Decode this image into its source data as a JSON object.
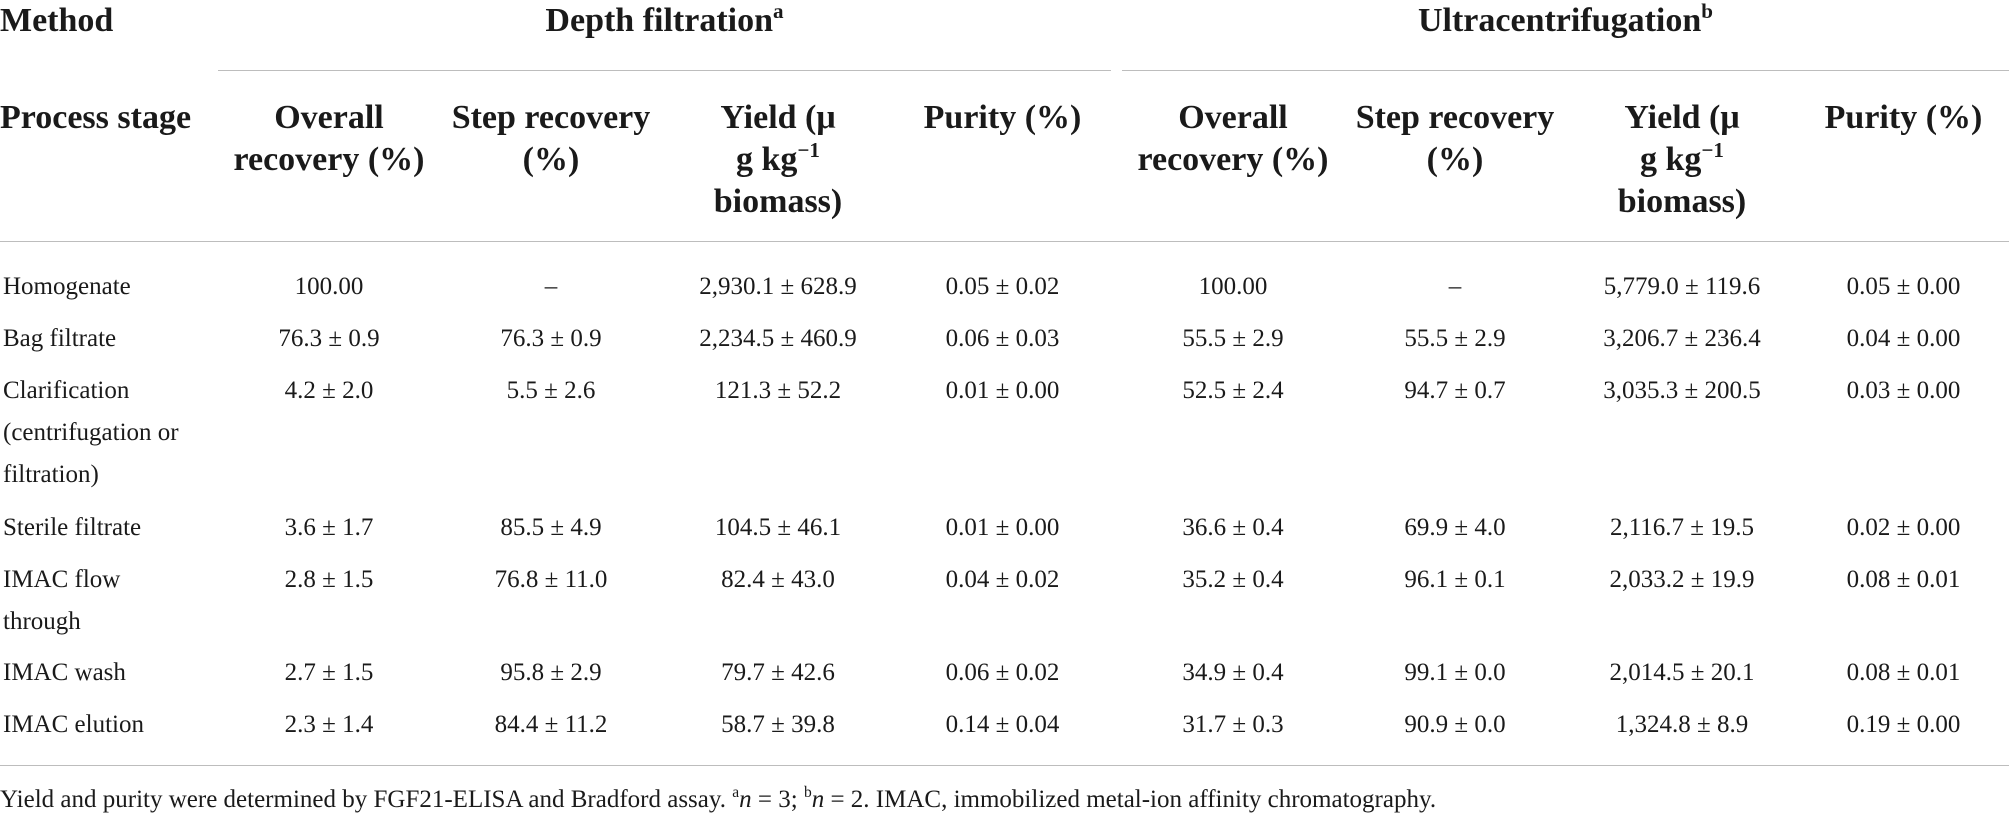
{
  "header": {
    "method_label": "Method",
    "process_stage_label": "Process stage",
    "group1": {
      "title": "Depth filtration",
      "note": "a"
    },
    "group2": {
      "title": "Ultracentrifugation",
      "note": "b"
    },
    "columns": {
      "overall_recovery": "Overall recovery (%)",
      "step_recovery": "Step recovery (%)",
      "yield_a": "Yield (μ",
      "yield_b": "g kg",
      "yield_exp": "−1",
      "yield_c": "biomass)",
      "purity": "Purity (%)"
    }
  },
  "rows": [
    {
      "stage": "Homogenate",
      "df": [
        "100.00",
        "–",
        "2,930.1 ± 628.9",
        "0.05 ± 0.02"
      ],
      "uc": [
        "100.00",
        "–",
        "5,779.0 ± 119.6",
        "0.05 ± 0.00"
      ]
    },
    {
      "stage": "Bag filtrate",
      "df": [
        "76.3 ± 0.9",
        "76.3 ± 0.9",
        "2,234.5 ± 460.9",
        "0.06 ± 0.03"
      ],
      "uc": [
        "55.5 ± 2.9",
        "55.5 ± 2.9",
        "3,206.7 ± 236.4",
        "0.04 ± 0.00"
      ]
    },
    {
      "stage": "Clarification (centrifugation or filtration)",
      "df": [
        "4.2 ± 2.0",
        "5.5 ± 2.6",
        "121.3 ± 52.2",
        "0.01 ± 0.00"
      ],
      "uc": [
        "52.5 ± 2.4",
        "94.7 ± 0.7",
        "3,035.3 ± 200.5",
        "0.03 ± 0.00"
      ]
    },
    {
      "stage": "Sterile filtrate",
      "df": [
        "3.6 ± 1.7",
        "85.5 ± 4.9",
        "104.5 ± 46.1",
        "0.01 ± 0.00"
      ],
      "uc": [
        "36.6 ± 0.4",
        "69.9 ± 4.0",
        "2,116.7 ± 19.5",
        "0.02 ± 0.00"
      ]
    },
    {
      "stage": "IMAC flow through",
      "df": [
        "2.8 ± 1.5",
        "76.8 ± 11.0",
        "82.4 ± 43.0",
        "0.04 ± 0.02"
      ],
      "uc": [
        "35.2 ± 0.4",
        "96.1 ± 0.1",
        "2,033.2 ± 19.9",
        "0.08 ± 0.01"
      ]
    },
    {
      "stage": "IMAC wash",
      "df": [
        "2.7 ± 1.5",
        "95.8 ± 2.9",
        "79.7 ± 42.6",
        "0.06 ± 0.02"
      ],
      "uc": [
        "34.9 ± 0.4",
        "99.1 ± 0.0",
        "2,014.5 ± 20.1",
        "0.08 ± 0.01"
      ]
    },
    {
      "stage": "IMAC elution",
      "df": [
        "2.3 ± 1.4",
        "84.4 ± 11.2",
        "58.7 ± 39.8",
        "0.14 ± 0.04"
      ],
      "uc": [
        "31.7 ± 0.3",
        "90.9 ± 0.0",
        "1,324.8 ± 8.9",
        "0.19 ± 0.00"
      ]
    }
  ],
  "footnote": {
    "text1": "Yield and purity were determined by FGF21-ELISA and Bradford assay. ",
    "sup_a": "a",
    "n_var": "n",
    "eq_a": " = 3; ",
    "sup_b": "b",
    "eq_b": " = 2. IMAC, immobilized metal-ion affinity chromatography."
  }
}
